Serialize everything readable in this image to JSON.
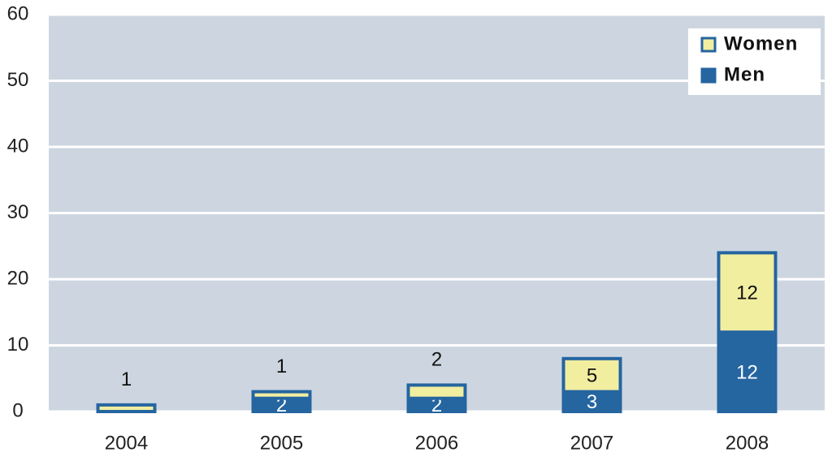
{
  "chart_data": {
    "type": "stacked_bar",
    "categories": [
      "2004",
      "2005",
      "2006",
      "2007",
      "2008"
    ],
    "series": [
      {
        "name": "Men",
        "color": "#2565a0",
        "values": [
          0,
          2,
          2,
          3,
          12
        ]
      },
      {
        "name": "Women",
        "color": "#f2eea0",
        "values": [
          1,
          1,
          2,
          5,
          12
        ]
      }
    ],
    "ylim": [
      0,
      60
    ],
    "yticks": [
      0,
      10,
      20,
      30,
      40,
      50,
      60
    ],
    "grid": true,
    "legend": "upper right"
  }
}
